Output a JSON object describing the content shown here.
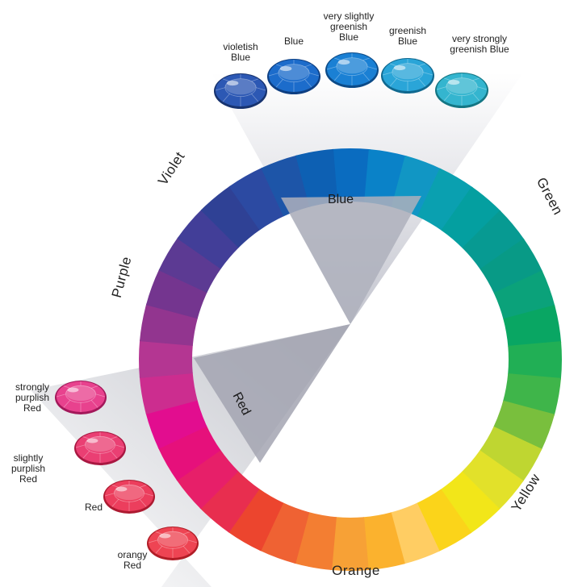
{
  "wheel": {
    "segments": [
      "#0a6cc0",
      "#0a82c8",
      "#1196c4",
      "#0aa0b0",
      "#049fa0",
      "#079a92",
      "#089a86",
      "#0ba27a",
      "#09a663",
      "#21af55",
      "#3fb54a",
      "#79bf3d",
      "#bfd631",
      "#e2e12a",
      "#f2e619",
      "#fbd41a",
      "#ffcd63",
      "#fbb22e",
      "#f7a136",
      "#f37e32",
      "#ef6233",
      "#ec452e",
      "#e82e4f",
      "#e71f69",
      "#e6107b",
      "#e20d8f",
      "#cc2d8f",
      "#b43692",
      "#92358f",
      "#74358f",
      "#5c3a93",
      "#423e98",
      "#2f4195",
      "#2c4aa2",
      "#1d55a8",
      "#0d60b3"
    ]
  },
  "hue_labels": {
    "blue": "Blue",
    "green": "Green",
    "yellow": "Yellow",
    "orange": "Orange",
    "red": "Red",
    "purple": "Purple",
    "violet": "Violet"
  },
  "blue_gems": [
    {
      "lines": [
        "violetish",
        "Blue"
      ],
      "color": "#2c58b4",
      "dark": "#17336f"
    },
    {
      "lines": [
        "Blue"
      ],
      "color": "#1c6ccb",
      "dark": "#0e3f82"
    },
    {
      "lines": [
        "very slightly",
        "greenish",
        "Blue"
      ],
      "color": "#1a80d4",
      "dark": "#0c4b88"
    },
    {
      "lines": [
        "greenish",
        "Blue"
      ],
      "color": "#2aa5d8",
      "dark": "#106990"
    },
    {
      "lines": [
        "very strongly",
        "greenish Blue"
      ],
      "color": "#34b5cf",
      "dark": "#137684"
    }
  ],
  "red_gems": [
    {
      "lines": [
        "strongly",
        "purplish",
        "Red"
      ],
      "color": "#e8428e",
      "dark": "#a3185a"
    },
    {
      "lines": [
        "slightly",
        "purplish",
        "Red"
      ],
      "color": "#ea3f73",
      "dark": "#a91842"
    },
    {
      "lines": [
        "Red"
      ],
      "color": "#ec3e5d",
      "dark": "#ad1a31"
    },
    {
      "lines": [
        "orangy",
        "Red"
      ],
      "color": "#ee4453",
      "dark": "#b11d27"
    }
  ]
}
